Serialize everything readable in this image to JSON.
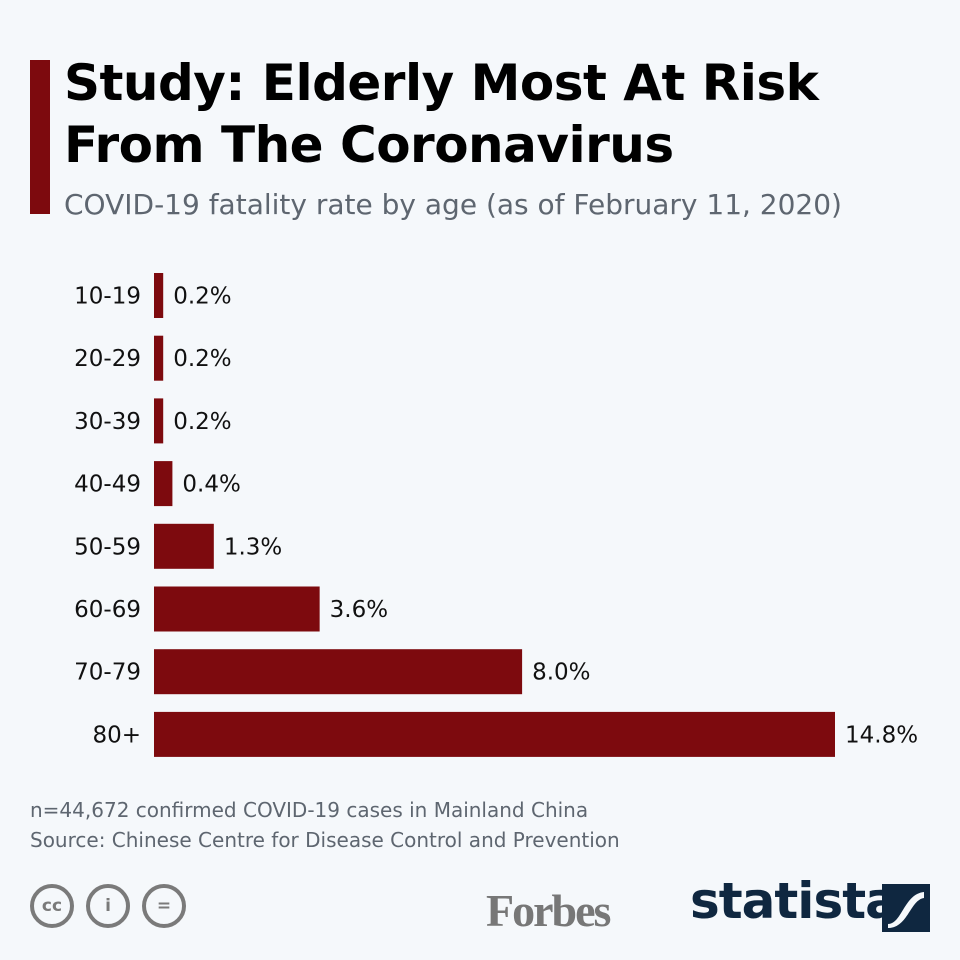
{
  "header": {
    "title_line1": "Study: Elderly Most At Risk",
    "title_line2": "From The Coronavirus",
    "subtitle": "COVID-19 fatality rate by age (as of February 11, 2020)"
  },
  "chart_data": {
    "type": "bar",
    "orientation": "horizontal",
    "categories": [
      "10-19",
      "20-29",
      "30-39",
      "40-49",
      "50-59",
      "60-69",
      "70-79",
      "80+"
    ],
    "values": [
      0.2,
      0.2,
      0.2,
      0.4,
      1.3,
      3.6,
      8.0,
      14.8
    ],
    "labels": [
      "0.2%",
      "0.2%",
      "0.2%",
      "0.4%",
      "1.3%",
      "3.6%",
      "8.0%",
      "14.8%"
    ],
    "xlim": [
      0,
      14.8
    ],
    "grid": false,
    "bar_color": "#7d0a0e"
  },
  "footer": {
    "note": "n=44,672 confirmed COVID-19 cases in Mainland China",
    "source": "Source: Chinese Centre for Disease Control and Prevention",
    "forbes": "Forbes",
    "statista": "statista",
    "cc_icons": [
      "cc-icon",
      "attribution-icon",
      "no-derivatives-icon"
    ]
  }
}
